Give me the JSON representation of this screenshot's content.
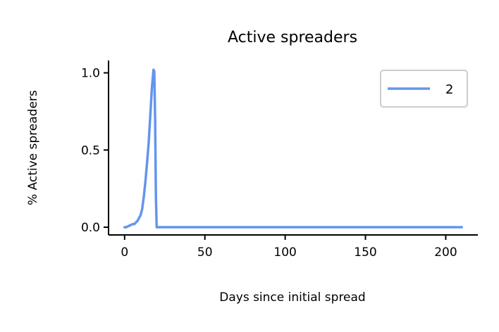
{
  "chart_data": {
    "type": "line",
    "title": "Active spreaders",
    "xlabel": "Days since initial spread",
    "ylabel": "% Active spreaders",
    "xlim": [
      -10,
      220
    ],
    "ylim": [
      -0.05,
      1.08
    ],
    "xticks": [
      0,
      50,
      100,
      150,
      200
    ],
    "xtick_labels": [
      "0",
      "50",
      "100",
      "150",
      "200"
    ],
    "yticks": [
      0.0,
      0.5,
      1.0
    ],
    "ytick_labels": [
      "0.0",
      "0.5",
      "1.0"
    ],
    "grid": false,
    "legend_position": "top-right",
    "series": [
      {
        "name": "2",
        "color": "#6495ED",
        "x": [
          0,
          1,
          2,
          3,
          4,
          5,
          6,
          7,
          8,
          9,
          10,
          11,
          12,
          13,
          14,
          15,
          16,
          17,
          18,
          18.5,
          19,
          19.5,
          20,
          25,
          50,
          100,
          150,
          200,
          210
        ],
        "y": [
          0.0,
          0.0,
          0.005,
          0.01,
          0.015,
          0.02,
          0.02,
          0.03,
          0.04,
          0.06,
          0.08,
          0.12,
          0.2,
          0.3,
          0.42,
          0.55,
          0.72,
          0.9,
          1.02,
          1.01,
          0.7,
          0.2,
          0.0,
          0.0,
          0.0,
          0.0,
          0.0,
          0.0,
          0.0
        ]
      }
    ]
  }
}
